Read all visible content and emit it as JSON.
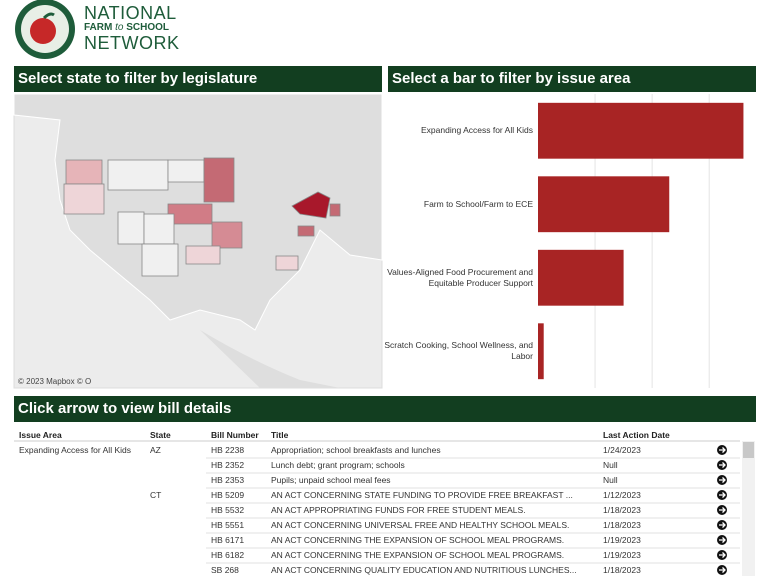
{
  "header": {
    "logo_line1": "NATIONAL",
    "logo_line2a": "FARM",
    "logo_line2b": "to",
    "logo_line2c": "SCHOOL",
    "logo_line3": "NETWORK"
  },
  "map_panel": {
    "title": "Select state to filter by legislature",
    "attribution": "© 2023 Mapbox  © O"
  },
  "chart_panel": {
    "title": "Select a bar to filter by issue area"
  },
  "chart_data": {
    "type": "bar",
    "orientation": "horizontal",
    "categories": [
      "Expanding Access for All Kids",
      "Farm to School/Farm to ECE",
      "Values-Aligned Food Procurement and Equitable Producer Support",
      "Scratch Cooking, School Wellness, and Labor"
    ],
    "values": [
      36,
      23,
      15,
      1
    ],
    "color": "#a82424",
    "xlim": [
      0,
      37.5
    ],
    "xticks": [
      10,
      20,
      30
    ],
    "grid": true
  },
  "table_panel": {
    "title": "Click arrow to view bill details"
  },
  "table": {
    "columns": [
      "Issue Area",
      "State",
      "Bill Number",
      "Title",
      "Last Action Date"
    ],
    "rows": [
      {
        "issue": "Expanding Access for All Kids",
        "state": "AZ",
        "bill": "HB 2238",
        "title": "Appropriation; school breakfasts and lunches",
        "date": "1/24/2023"
      },
      {
        "bill": "HB 2352",
        "title": "Lunch debt; grant program; schools",
        "date": "Null"
      },
      {
        "bill": "HB 2353",
        "title": "Pupils; unpaid school meal fees",
        "date": "Null"
      },
      {
        "state": "CT",
        "bill": "HB 5209",
        "title": "AN ACT CONCERNING STATE FUNDING TO PROVIDE FREE BREAKFAST ...",
        "date": "1/12/2023"
      },
      {
        "bill": "HB 5532",
        "title": "AN ACT APPROPRIATING FUNDS FOR FREE STUDENT MEALS.",
        "date": "1/18/2023"
      },
      {
        "bill": "HB 5551",
        "title": "AN ACT CONCERNING UNIVERSAL FREE AND HEALTHY SCHOOL MEALS.",
        "date": "1/18/2023"
      },
      {
        "bill": "HB 6171",
        "title": "AN ACT CONCERNING THE EXPANSION OF SCHOOL MEAL PROGRAMS.",
        "date": "1/19/2023"
      },
      {
        "bill": "HB 6182",
        "title": "AN ACT CONCERNING THE EXPANSION OF SCHOOL MEAL PROGRAMS.",
        "date": "1/19/2023"
      },
      {
        "bill": "SB 268",
        "title": "AN ACT CONCERNING QUALITY EDUCATION AND NUTRITIOUS LUNCHES...",
        "date": "1/18/2023"
      }
    ]
  }
}
